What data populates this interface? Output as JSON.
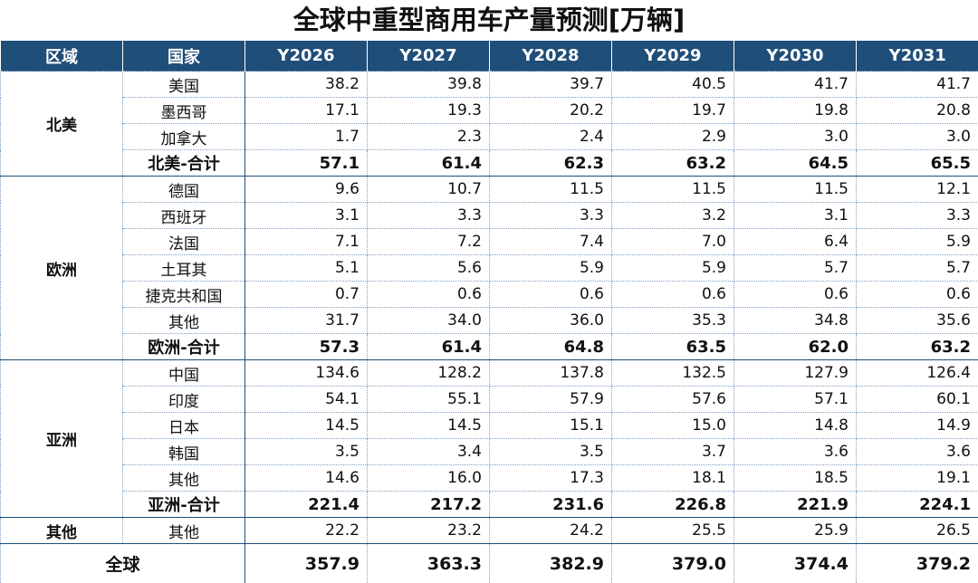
{
  "title": "全球中重型商用车产量预测[万辆]",
  "header": [
    "区域",
    "国家",
    "Y2026",
    "Y2027",
    "Y2028",
    "Y2029",
    "Y2030",
    "Y2031"
  ],
  "groups": [
    {
      "region": "北美",
      "rows": [
        {
          "country": "美国",
          "values": [
            "38.2",
            "39.8",
            "39.7",
            "40.5",
            "41.7",
            "41.7"
          ]
        },
        {
          "country": "墨西哥",
          "values": [
            "17.1",
            "19.3",
            "20.2",
            "19.7",
            "19.8",
            "20.8"
          ]
        },
        {
          "country": "加拿大",
          "values": [
            "1.7",
            "2.3",
            "2.4",
            "2.9",
            "3.0",
            "3.0"
          ]
        }
      ],
      "total": {
        "label": "北美-合计",
        "values": [
          "57.1",
          "61.4",
          "62.3",
          "63.2",
          "64.5",
          "65.5"
        ]
      }
    },
    {
      "region": "欧洲",
      "rows": [
        {
          "country": "德国",
          "values": [
            "9.6",
            "10.7",
            "11.5",
            "11.5",
            "11.5",
            "12.1"
          ]
        },
        {
          "country": "西班牙",
          "values": [
            "3.1",
            "3.3",
            "3.3",
            "3.2",
            "3.1",
            "3.3"
          ]
        },
        {
          "country": "法国",
          "values": [
            "7.1",
            "7.2",
            "7.4",
            "7.0",
            "6.4",
            "5.9"
          ]
        },
        {
          "country": "土耳其",
          "values": [
            "5.1",
            "5.6",
            "5.9",
            "5.9",
            "5.7",
            "5.7"
          ]
        },
        {
          "country": "捷克共和国",
          "values": [
            "0.7",
            "0.6",
            "0.6",
            "0.6",
            "0.6",
            "0.6"
          ]
        },
        {
          "country": "其他",
          "values": [
            "31.7",
            "34.0",
            "36.0",
            "35.3",
            "34.8",
            "35.6"
          ]
        }
      ],
      "total": {
        "label": "欧洲-合计",
        "values": [
          "57.3",
          "61.4",
          "64.8",
          "63.5",
          "62.0",
          "63.2"
        ]
      }
    },
    {
      "region": "亚洲",
      "rows": [
        {
          "country": "中国",
          "values": [
            "134.6",
            "128.2",
            "137.8",
            "132.5",
            "127.9",
            "126.4"
          ]
        },
        {
          "country": "印度",
          "values": [
            "54.1",
            "55.1",
            "57.9",
            "57.6",
            "57.1",
            "60.1"
          ]
        },
        {
          "country": "日本",
          "values": [
            "14.5",
            "14.5",
            "15.1",
            "15.0",
            "14.8",
            "14.9"
          ]
        },
        {
          "country": "韩国",
          "values": [
            "3.5",
            "3.4",
            "3.5",
            "3.7",
            "3.6",
            "3.6"
          ]
        },
        {
          "country": "其他",
          "values": [
            "14.6",
            "16.0",
            "17.3",
            "18.1",
            "18.5",
            "19.1"
          ]
        }
      ],
      "total": {
        "label": "亚洲-合计",
        "values": [
          "221.4",
          "217.2",
          "231.6",
          "226.8",
          "221.9",
          "224.1"
        ]
      }
    },
    {
      "region": "其他",
      "rows": [
        {
          "country": "其他",
          "values": [
            "22.2",
            "23.2",
            "24.2",
            "25.5",
            "25.9",
            "26.5"
          ]
        }
      ]
    }
  ],
  "global": {
    "label": "全球",
    "values": [
      "357.9",
      "363.3",
      "382.9",
      "379.0",
      "374.4",
      "379.2"
    ]
  }
}
